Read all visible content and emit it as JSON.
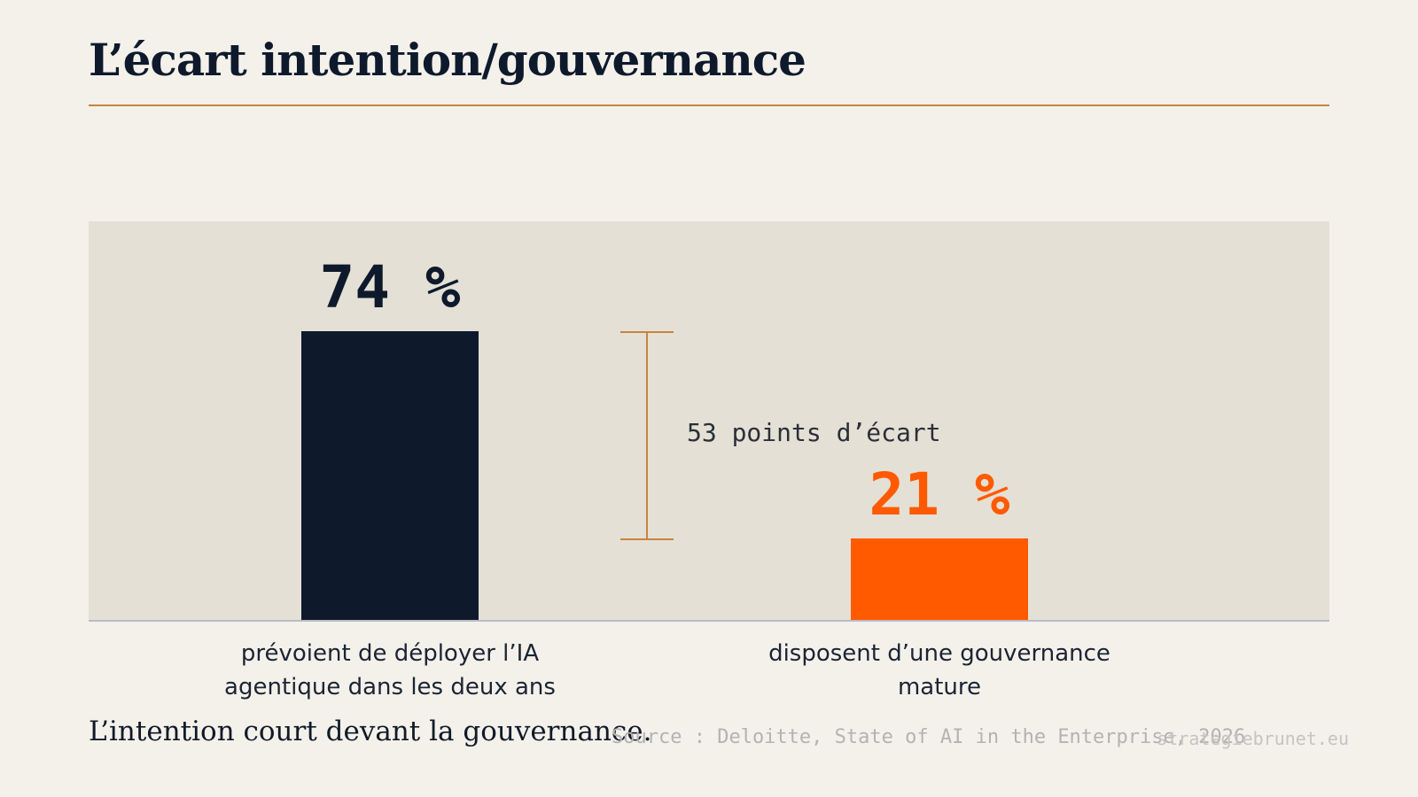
{
  "page": {
    "title": "L’écart intention/gouvernance",
    "takeaway": "L’intention court devant la gouvernance.",
    "source": "Source : Deloitte, State of AI in the Enterprise, 2026",
    "credit": "strategiebrunet.eu"
  },
  "chart_data": {
    "type": "bar",
    "title": "",
    "xlabel": "",
    "ylabel": "",
    "ylim": [
      0,
      100
    ],
    "grid": false,
    "categories": [
      "prévoient de déployer l’IA agentique dans les deux ans",
      "disposent d’une gouvernance mature"
    ],
    "category_lines": [
      [
        "prévoient de déployer l’IA",
        "agentique dans les deux ans"
      ],
      [
        "disposent d’une gouvernance",
        "mature"
      ]
    ],
    "values": [
      74,
      21
    ],
    "value_labels": [
      "74 %",
      "21 %"
    ],
    "colors": [
      "#0e1a2c",
      "#ff5a00"
    ],
    "annotation": {
      "text": "53 points d’écart",
      "value": 53,
      "from": 21,
      "to": 74,
      "color": "#c8843f"
    }
  }
}
